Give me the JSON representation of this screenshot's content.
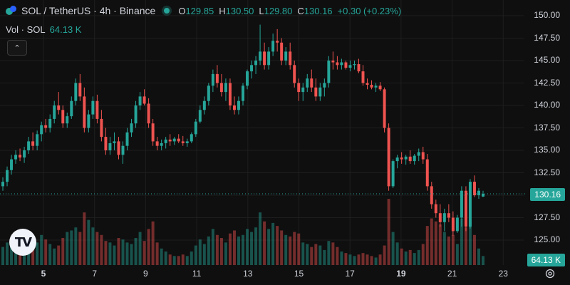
{
  "legend": {
    "title": "SOL / TetherUS · 4h · Binance",
    "ohlc": [
      {
        "k": "O",
        "v": "129.85"
      },
      {
        "k": "H",
        "v": "130.50"
      },
      {
        "k": "L",
        "v": "129.80"
      },
      {
        "k": "C",
        "v": "130.16"
      },
      {
        "k": "",
        "v": "+0.30 (+0.23%)"
      }
    ]
  },
  "volume_legend": {
    "label": "Vol · SOL",
    "value": "64.13 K"
  },
  "price_axis": [
    "150.00",
    "147.50",
    "145.00",
    "142.50",
    "140.00",
    "137.50",
    "135.00",
    "132.50",
    "127.50",
    "125.00"
  ],
  "last_price_badge": "130.16",
  "last_volume_badge": "64.13 K",
  "time_axis": [
    {
      "label": "5",
      "bold": true
    },
    {
      "label": "7",
      "bold": false
    },
    {
      "label": "9",
      "bold": false
    },
    {
      "label": "11",
      "bold": false
    },
    {
      "label": "13",
      "bold": false
    },
    {
      "label": "15",
      "bold": false
    },
    {
      "label": "17",
      "bold": false
    },
    {
      "label": "19",
      "bold": true
    },
    {
      "label": "21",
      "bold": false
    },
    {
      "label": "23",
      "bold": false
    }
  ],
  "logo_text": "TV",
  "colors": {
    "up": "#26a69a",
    "down": "#ef5350",
    "background": "#0f0f0f",
    "grid": "#1e1e1e"
  },
  "chart_data": {
    "type": "candlestick",
    "symbol": "SOL / TetherUS",
    "interval": "4h",
    "exchange": "Binance",
    "y_range": [
      122.3,
      151.6
    ],
    "y_ticks": [
      125,
      127.5,
      130,
      132.5,
      135,
      137.5,
      140,
      142.5,
      145,
      147.5,
      150
    ],
    "last_close": 130.16,
    "series": [
      {
        "name": "candles",
        "points": [
          [
            131.0,
            132.0,
            130.5,
            131.5,
            24
          ],
          [
            131.5,
            133.2,
            131.0,
            132.8,
            30
          ],
          [
            132.8,
            134.5,
            132.3,
            134.0,
            28
          ],
          [
            134.0,
            135.0,
            133.5,
            134.5,
            22
          ],
          [
            134.5,
            135.2,
            133.8,
            134.2,
            26
          ],
          [
            134.2,
            135.4,
            133.6,
            135.0,
            20
          ],
          [
            135.0,
            136.5,
            134.6,
            136.0,
            32
          ],
          [
            136.0,
            137.0,
            135.0,
            135.5,
            36
          ],
          [
            135.5,
            137.2,
            135.0,
            136.8,
            30
          ],
          [
            136.8,
            138.2,
            136.0,
            137.8,
            40
          ],
          [
            137.8,
            138.5,
            137.0,
            137.5,
            34
          ],
          [
            137.5,
            139.0,
            137.0,
            138.5,
            28
          ],
          [
            138.5,
            140.5,
            138.0,
            140.0,
            22
          ],
          [
            140.0,
            141.5,
            139.0,
            139.5,
            26
          ],
          [
            139.5,
            140.0,
            137.5,
            138.0,
            36
          ],
          [
            138.0,
            139.2,
            137.5,
            138.8,
            44
          ],
          [
            138.8,
            141.0,
            138.5,
            140.5,
            46
          ],
          [
            140.5,
            143.0,
            140.0,
            142.5,
            50
          ],
          [
            142.5,
            143.5,
            140.5,
            141.0,
            44
          ],
          [
            141.0,
            142.0,
            137.0,
            137.5,
            70
          ],
          [
            137.5,
            139.5,
            137.0,
            139.0,
            60
          ],
          [
            139.0,
            141.0,
            138.5,
            140.5,
            50
          ],
          [
            140.5,
            141.2,
            138.0,
            138.5,
            44
          ],
          [
            138.5,
            139.5,
            136.0,
            136.5,
            40
          ],
          [
            136.5,
            137.5,
            134.5,
            135.0,
            32
          ],
          [
            135.0,
            136.5,
            134.5,
            135.8,
            30
          ],
          [
            135.8,
            137.0,
            135.0,
            136.0,
            26
          ],
          [
            136.0,
            136.5,
            134.0,
            134.5,
            36
          ],
          [
            134.5,
            136.0,
            133.5,
            135.5,
            34
          ],
          [
            135.5,
            137.5,
            135.0,
            137.0,
            30
          ],
          [
            137.0,
            138.5,
            136.5,
            138.0,
            28
          ],
          [
            138.0,
            140.5,
            137.5,
            140.0,
            36
          ],
          [
            140.0,
            141.5,
            139.5,
            141.0,
            44
          ],
          [
            141.0,
            141.8,
            140.0,
            140.2,
            32
          ],
          [
            140.2,
            140.8,
            137.5,
            138.0,
            48
          ],
          [
            138.0,
            138.5,
            135.5,
            136.0,
            58
          ],
          [
            136.0,
            136.5,
            135.0,
            135.5,
            30
          ],
          [
            135.5,
            136.2,
            135.0,
            135.8,
            22
          ],
          [
            135.8,
            136.5,
            135.2,
            136.2,
            18
          ],
          [
            136.2,
            136.8,
            135.5,
            136.0,
            14
          ],
          [
            136.0,
            136.5,
            135.6,
            136.3,
            12
          ],
          [
            136.3,
            136.8,
            135.8,
            136.0,
            12
          ],
          [
            136.0,
            136.6,
            135.5,
            135.8,
            14
          ],
          [
            135.8,
            136.3,
            135.4,
            136.0,
            12
          ],
          [
            136.0,
            137.0,
            135.8,
            136.8,
            18
          ],
          [
            136.8,
            138.5,
            136.5,
            138.2,
            26
          ],
          [
            138.2,
            140.0,
            138.0,
            139.5,
            34
          ],
          [
            139.5,
            141.0,
            139.0,
            140.5,
            28
          ],
          [
            140.5,
            142.5,
            140.0,
            142.2,
            38
          ],
          [
            142.2,
            144.0,
            141.5,
            143.5,
            48
          ],
          [
            143.5,
            144.5,
            142.0,
            142.5,
            40
          ],
          [
            142.5,
            143.5,
            141.0,
            141.5,
            36
          ],
          [
            141.5,
            143.0,
            140.5,
            142.5,
            30
          ],
          [
            142.5,
            143.0,
            139.5,
            140.0,
            42
          ],
          [
            140.0,
            141.0,
            139.0,
            139.5,
            46
          ],
          [
            139.5,
            141.0,
            139.0,
            140.5,
            38
          ],
          [
            140.5,
            142.5,
            140.0,
            142.2,
            40
          ],
          [
            142.2,
            144.0,
            141.8,
            143.8,
            48
          ],
          [
            143.8,
            145.0,
            143.0,
            144.5,
            44
          ],
          [
            144.5,
            145.5,
            143.5,
            145.0,
            50
          ],
          [
            145.0,
            149.0,
            144.5,
            146.0,
            70
          ],
          [
            146.0,
            147.0,
            144.0,
            144.5,
            58
          ],
          [
            144.5,
            146.5,
            144.0,
            146.0,
            48
          ],
          [
            146.0,
            148.0,
            145.5,
            147.2,
            56
          ],
          [
            147.2,
            148.5,
            146.0,
            147.0,
            52
          ],
          [
            147.0,
            147.5,
            144.5,
            145.0,
            46
          ],
          [
            145.0,
            146.5,
            144.5,
            146.0,
            40
          ],
          [
            146.0,
            147.0,
            144.0,
            144.5,
            38
          ],
          [
            144.5,
            145.0,
            142.0,
            142.5,
            44
          ],
          [
            142.5,
            143.0,
            140.5,
            141.5,
            42
          ],
          [
            141.5,
            142.5,
            140.5,
            142.0,
            30
          ],
          [
            142.0,
            143.5,
            141.5,
            143.0,
            28
          ],
          [
            143.0,
            144.0,
            141.5,
            142.0,
            24
          ],
          [
            142.0,
            143.0,
            140.5,
            141.0,
            28
          ],
          [
            141.0,
            142.5,
            140.5,
            142.0,
            26
          ],
          [
            142.0,
            143.0,
            141.0,
            142.5,
            20
          ],
          [
            142.5,
            145.5,
            142.0,
            145.0,
            32
          ],
          [
            145.0,
            146.0,
            144.0,
            144.8,
            30
          ],
          [
            144.8,
            145.5,
            144.0,
            144.5,
            24
          ],
          [
            144.5,
            145.2,
            144.0,
            144.8,
            18
          ],
          [
            144.8,
            145.0,
            144.0,
            144.2,
            16
          ],
          [
            144.2,
            145.0,
            143.8,
            144.5,
            14
          ],
          [
            144.5,
            145.0,
            144.0,
            144.6,
            12
          ],
          [
            144.6,
            145.2,
            143.6,
            143.8,
            14
          ],
          [
            143.8,
            144.5,
            142.2,
            142.5,
            16
          ],
          [
            142.5,
            143.0,
            141.8,
            142.3,
            14
          ],
          [
            142.3,
            142.8,
            141.8,
            142.0,
            12
          ],
          [
            142.0,
            142.5,
            141.5,
            142.2,
            10
          ],
          [
            142.2,
            142.6,
            141.6,
            141.8,
            14
          ],
          [
            141.8,
            142.0,
            137.0,
            137.5,
            26
          ],
          [
            137.5,
            138.0,
            130.5,
            131.0,
            88
          ],
          [
            131.0,
            134.0,
            130.8,
            133.8,
            44
          ],
          [
            133.8,
            134.5,
            133.0,
            134.2,
            30
          ],
          [
            134.2,
            134.8,
            133.5,
            134.0,
            22
          ],
          [
            134.0,
            134.5,
            133.4,
            134.3,
            18
          ],
          [
            134.3,
            135.0,
            133.5,
            133.8,
            20
          ],
          [
            133.8,
            134.6,
            133.4,
            134.4,
            16
          ],
          [
            134.4,
            135.2,
            133.8,
            134.8,
            20
          ],
          [
            134.8,
            135.4,
            133.5,
            134.0,
            28
          ],
          [
            134.0,
            134.6,
            130.5,
            131.0,
            52
          ],
          [
            131.0,
            131.5,
            128.5,
            129.0,
            62
          ],
          [
            129.0,
            129.5,
            127.5,
            128.0,
            58
          ],
          [
            128.0,
            129.0,
            126.5,
            127.0,
            54
          ],
          [
            127.0,
            128.5,
            126.0,
            128.0,
            44
          ],
          [
            128.0,
            129.0,
            127.0,
            127.5,
            38
          ],
          [
            127.5,
            128.2,
            125.5,
            126.0,
            40
          ],
          [
            126.0,
            127.8,
            125.8,
            127.5,
            28
          ],
          [
            127.5,
            131.0,
            126.5,
            130.5,
            62
          ],
          [
            130.5,
            131.0,
            126.0,
            126.5,
            50
          ],
          [
            126.5,
            131.8,
            126.3,
            131.5,
            60
          ],
          [
            131.5,
            132.2,
            129.8,
            130.0,
            40
          ],
          [
            130.0,
            130.8,
            129.6,
            130.5,
            22
          ],
          [
            129.85,
            130.5,
            129.8,
            130.16,
            12
          ]
        ]
      }
    ]
  }
}
